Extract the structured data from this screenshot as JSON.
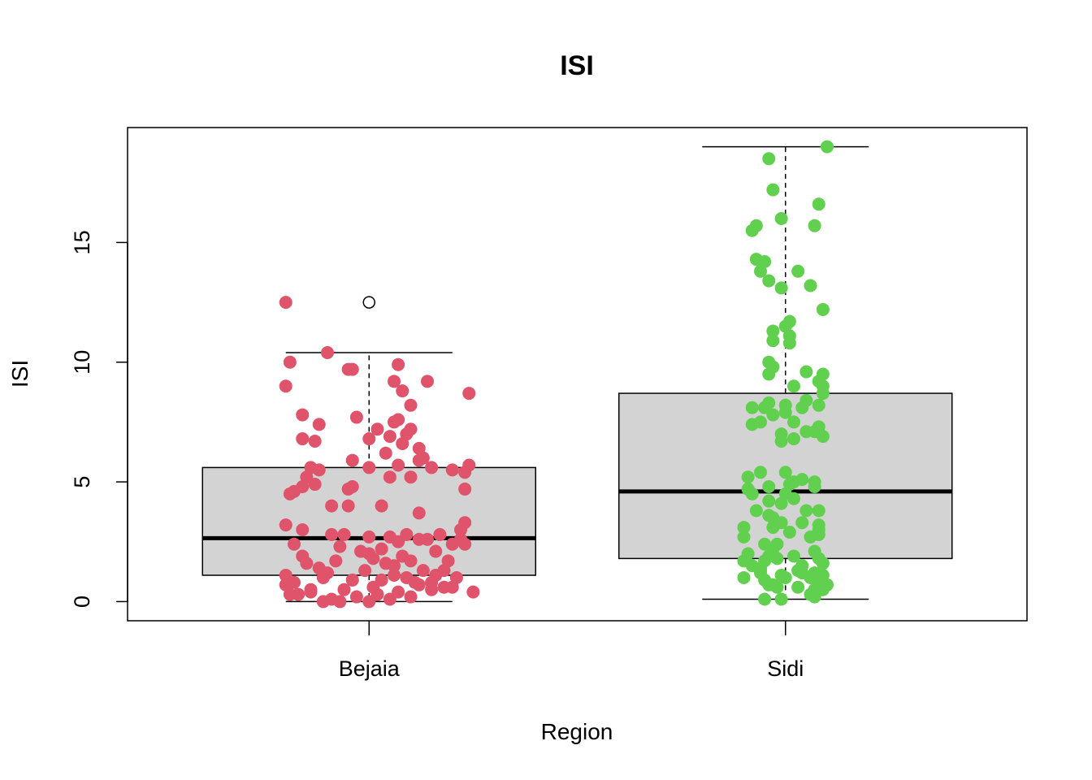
{
  "chart_data": {
    "type": "boxplot",
    "title": "ISI",
    "xlabel": "Region",
    "ylabel": "ISI",
    "categories": [
      "Bejaia",
      "Sidi"
    ],
    "ylim": [
      -0.8,
      19.8
    ],
    "yticks": [
      0,
      5,
      10,
      15
    ],
    "box_fill": "#d3d3d3",
    "outline_color": "#000000",
    "point_colors": [
      "#df536b",
      "#61d04f"
    ],
    "boxes": [
      {
        "category": "Bejaia",
        "whisker_low": 0,
        "q1": 1.1,
        "median": 2.65,
        "q3": 5.6,
        "whisker_high": 10.4,
        "outliers": [
          12.5
        ]
      },
      {
        "category": "Sidi",
        "whisker_low": 0.1,
        "q1": 1.8,
        "median": 4.6,
        "q3": 8.7,
        "whisker_high": 19.0,
        "outliers": []
      }
    ],
    "series": [
      {
        "category": "Bejaia",
        "points": [
          [
            -0.2,
            12.5
          ],
          [
            -0.19,
            10.0
          ],
          [
            -0.1,
            10.4
          ],
          [
            -0.05,
            9.7
          ],
          [
            -0.04,
            9.7
          ],
          [
            0.07,
            9.9
          ],
          [
            -0.2,
            9.0
          ],
          [
            0.06,
            9.2
          ],
          [
            0.14,
            9.2
          ],
          [
            0.08,
            8.8
          ],
          [
            0.24,
            8.7
          ],
          [
            0.1,
            8.2
          ],
          [
            -0.16,
            7.8
          ],
          [
            -0.12,
            7.4
          ],
          [
            -0.03,
            7.7
          ],
          [
            0.02,
            7.2
          ],
          [
            0.06,
            7.5
          ],
          [
            0.07,
            7.6
          ],
          [
            0.09,
            7.0
          ],
          [
            0.1,
            7.2
          ],
          [
            0.12,
            6.4
          ],
          [
            0.13,
            6.0
          ],
          [
            0.08,
            6.6
          ],
          [
            0.05,
            6.9
          ],
          [
            -0.16,
            6.8
          ],
          [
            -0.13,
            6.7
          ],
          [
            0.0,
            6.8
          ],
          [
            0.04,
            6.2
          ],
          [
            -0.04,
            5.9
          ],
          [
            0.0,
            5.6
          ],
          [
            0.07,
            5.7
          ],
          [
            0.12,
            5.9
          ],
          [
            0.15,
            5.6
          ],
          [
            0.2,
            5.5
          ],
          [
            0.24,
            5.7
          ],
          [
            0.23,
            5.4
          ],
          [
            -0.14,
            5.6
          ],
          [
            -0.12,
            5.5
          ],
          [
            -0.15,
            5.2
          ],
          [
            -0.13,
            4.9
          ],
          [
            -0.16,
            4.8
          ],
          [
            -0.18,
            4.6
          ],
          [
            -0.19,
            4.5
          ],
          [
            -0.05,
            4.7
          ],
          [
            -0.04,
            4.8
          ],
          [
            0.05,
            5.2
          ],
          [
            0.1,
            5.2
          ],
          [
            0.23,
            4.7
          ],
          [
            -0.09,
            4.0
          ],
          [
            -0.05,
            4.0
          ],
          [
            0.03,
            4.0
          ],
          [
            0.12,
            3.7
          ],
          [
            0.23,
            3.3
          ],
          [
            0.22,
            3.0
          ],
          [
            -0.2,
            3.2
          ],
          [
            -0.16,
            3.0
          ],
          [
            -0.09,
            2.8
          ],
          [
            -0.06,
            2.8
          ],
          [
            0.0,
            2.7
          ],
          [
            0.05,
            2.7
          ],
          [
            -0.18,
            2.4
          ],
          [
            -0.07,
            2.3
          ],
          [
            -0.02,
            2.1
          ],
          [
            0.03,
            2.2
          ],
          [
            0.07,
            2.5
          ],
          [
            0.09,
            2.8
          ],
          [
            0.12,
            2.6
          ],
          [
            0.14,
            2.6
          ],
          [
            0.17,
            2.8
          ],
          [
            0.2,
            2.4
          ],
          [
            0.22,
            2.6
          ],
          [
            0.23,
            2.4
          ],
          [
            -0.16,
            1.9
          ],
          [
            -0.15,
            1.6
          ],
          [
            -0.12,
            1.4
          ],
          [
            -0.1,
            1.2
          ],
          [
            -0.08,
            1.7
          ],
          [
            0.0,
            2.0
          ],
          [
            0.01,
            1.8
          ],
          [
            0.04,
            1.6
          ],
          [
            0.1,
            1.7
          ],
          [
            0.13,
            1.3
          ],
          [
            0.16,
            1.1
          ],
          [
            0.19,
            1.7
          ],
          [
            -0.2,
            1.1
          ],
          [
            -0.18,
            0.8
          ],
          [
            -0.14,
            0.5
          ],
          [
            -0.11,
            1.0
          ],
          [
            -0.04,
            0.9
          ],
          [
            0.01,
            0.6
          ],
          [
            0.03,
            0.9
          ],
          [
            0.06,
            1.1
          ],
          [
            0.09,
            1.0
          ],
          [
            0.12,
            0.7
          ],
          [
            0.15,
            0.8
          ],
          [
            0.2,
            0.6
          ],
          [
            -0.2,
            0.7
          ],
          [
            -0.19,
            0.3
          ],
          [
            -0.17,
            0.3
          ],
          [
            -0.14,
            0.4
          ],
          [
            -0.09,
            0.1
          ],
          [
            -0.07,
            0.0
          ],
          [
            -0.03,
            0.2
          ],
          [
            0.0,
            0.0
          ],
          [
            0.02,
            0.3
          ],
          [
            0.07,
            0.4
          ],
          [
            0.1,
            0.2
          ],
          [
            0.15,
            0.5
          ],
          [
            -0.11,
            0.0
          ],
          [
            0.05,
            0.1
          ],
          [
            0.18,
            0.6
          ],
          [
            0.25,
            0.4
          ],
          [
            0.06,
            1.5
          ],
          [
            -0.01,
            1.3
          ],
          [
            0.18,
            1.3
          ],
          [
            0.21,
            1.0
          ],
          [
            0.11,
            0.8
          ],
          [
            -0.06,
            0.5
          ],
          [
            0.08,
            1.9
          ],
          [
            0.16,
            2.1
          ]
        ]
      },
      {
        "category": "Sidi",
        "points": [
          [
            0.1,
            19.0
          ],
          [
            -0.04,
            18.5
          ],
          [
            -0.03,
            17.2
          ],
          [
            0.08,
            16.6
          ],
          [
            -0.01,
            16.0
          ],
          [
            -0.07,
            15.7
          ],
          [
            0.07,
            15.7
          ],
          [
            -0.08,
            15.5
          ],
          [
            -0.07,
            14.3
          ],
          [
            -0.05,
            14.2
          ],
          [
            -0.06,
            13.8
          ],
          [
            0.03,
            13.8
          ],
          [
            -0.04,
            13.4
          ],
          [
            -0.01,
            13.1
          ],
          [
            0.06,
            13.2
          ],
          [
            0.09,
            12.2
          ],
          [
            0.01,
            11.7
          ],
          [
            0.0,
            11.5
          ],
          [
            -0.03,
            11.3
          ],
          [
            0.01,
            11.1
          ],
          [
            -0.03,
            10.9
          ],
          [
            0.01,
            10.8
          ],
          [
            -0.04,
            10.0
          ],
          [
            -0.03,
            9.8
          ],
          [
            -0.04,
            9.5
          ],
          [
            0.05,
            9.6
          ],
          [
            0.09,
            9.5
          ],
          [
            0.02,
            9.0
          ],
          [
            0.08,
            9.2
          ],
          [
            0.09,
            9.0
          ],
          [
            0.09,
            8.7
          ],
          [
            0.08,
            8.2
          ],
          [
            0.05,
            8.4
          ],
          [
            0.04,
            8.1
          ],
          [
            0.02,
            7.5
          ],
          [
            0.07,
            7.1
          ],
          [
            0.08,
            7.3
          ],
          [
            0.09,
            6.9
          ],
          [
            -0.08,
            8.1
          ],
          [
            -0.04,
            8.3
          ],
          [
            -0.05,
            8.1
          ],
          [
            -0.03,
            7.8
          ],
          [
            -0.08,
            7.4
          ],
          [
            -0.06,
            7.5
          ],
          [
            0.0,
            8.2
          ],
          [
            0.0,
            7.9
          ],
          [
            0.02,
            6.8
          ],
          [
            -0.01,
            7.0
          ],
          [
            -0.01,
            6.7
          ],
          [
            0.05,
            7.1
          ],
          [
            -0.09,
            5.2
          ],
          [
            -0.06,
            5.4
          ],
          [
            -0.09,
            4.7
          ],
          [
            -0.08,
            4.5
          ],
          [
            -0.04,
            4.8
          ],
          [
            0.0,
            5.4
          ],
          [
            0.01,
            4.9
          ],
          [
            0.02,
            5.0
          ],
          [
            0.04,
            5.1
          ],
          [
            0.07,
            5.0
          ],
          [
            0.07,
            4.8
          ],
          [
            0.0,
            4.5
          ],
          [
            0.02,
            4.3
          ],
          [
            -0.04,
            4.2
          ],
          [
            -0.01,
            4.1
          ],
          [
            0.08,
            3.8
          ],
          [
            -0.07,
            3.8
          ],
          [
            -0.04,
            3.6
          ],
          [
            -0.03,
            3.5
          ],
          [
            -0.01,
            3.3
          ],
          [
            0.04,
            3.3
          ],
          [
            0.08,
            3.2
          ],
          [
            -0.1,
            3.1
          ],
          [
            -0.1,
            2.7
          ],
          [
            -0.03,
            3.1
          ],
          [
            0.01,
            2.9
          ],
          [
            0.06,
            2.7
          ],
          [
            0.08,
            2.8
          ],
          [
            0.08,
            3.0
          ],
          [
            -0.02,
            2.4
          ],
          [
            -0.03,
            2.2
          ],
          [
            -0.04,
            1.9
          ],
          [
            -0.05,
            1.7
          ],
          [
            -0.02,
            1.8
          ],
          [
            -0.09,
            2.0
          ],
          [
            -0.1,
            1.7
          ],
          [
            -0.08,
            1.5
          ],
          [
            -0.06,
            1.4
          ],
          [
            0.02,
            1.9
          ],
          [
            0.07,
            2.1
          ],
          [
            0.08,
            1.8
          ],
          [
            0.09,
            1.6
          ],
          [
            0.04,
            1.5
          ],
          [
            0.03,
            1.3
          ],
          [
            0.07,
            1.2
          ],
          [
            0.09,
            1.1
          ],
          [
            -0.1,
            1.0
          ],
          [
            -0.06,
            1.2
          ],
          [
            -0.05,
            0.9
          ],
          [
            -0.03,
            0.7
          ],
          [
            -0.01,
            1.1
          ],
          [
            0.0,
            1.0
          ],
          [
            0.04,
            1.2
          ],
          [
            0.06,
            1.0
          ],
          [
            0.08,
            0.8
          ],
          [
            0.1,
            0.7
          ],
          [
            0.09,
            0.5
          ],
          [
            0.07,
            0.5
          ],
          [
            -0.05,
            0.1
          ],
          [
            -0.01,
            0.1
          ],
          [
            0.06,
            0.3
          ],
          [
            0.07,
            0.2
          ],
          [
            -0.04,
            0.7
          ],
          [
            -0.02,
            0.6
          ],
          [
            0.03,
            0.6
          ],
          [
            0.07,
            0.4
          ],
          [
            0.09,
            0.8
          ],
          [
            -0.05,
            2.4
          ],
          [
            0.05,
            3.8
          ],
          [
            -0.06,
            1.3
          ]
        ]
      }
    ]
  }
}
